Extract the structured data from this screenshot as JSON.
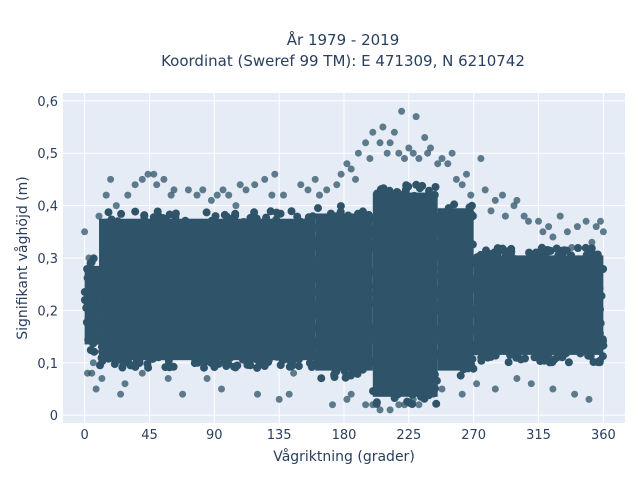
{
  "chart_data": {
    "type": "scatter",
    "title": "År 1979 - 2019",
    "subtitle": "Koordinat (Sweref 99 TM): E 471309, N 6210742",
    "xlabel": "Vågriktning (grader)",
    "ylabel": "Signifikant våghöjd (m)",
    "xlim": [
      -15,
      375
    ],
    "ylim": [
      -0.015,
      0.615
    ],
    "xticks": [
      0,
      45,
      90,
      135,
      180,
      225,
      270,
      315,
      360
    ],
    "xtick_labels": [
      "0",
      "45",
      "90",
      "135",
      "180",
      "225",
      "270",
      "315",
      "360"
    ],
    "yticks": [
      0,
      0.1,
      0.2,
      0.3,
      0.4,
      0.5,
      0.6
    ],
    "ytick_labels": [
      "0",
      "0,1",
      "0,2",
      "0,3",
      "0,4",
      "0,5",
      "0,6"
    ],
    "grid": true,
    "colors": {
      "marker": "#2f5469",
      "plot_bg": "#e5ecf6",
      "grid": "#ffffff",
      "text": "#2a3f5f"
    },
    "dense_band": [
      {
        "x": [
          0,
          10
        ],
        "y": [
          0.12,
          0.3
        ]
      },
      {
        "x": [
          10,
          160
        ],
        "y": [
          0.09,
          0.39
        ]
      },
      {
        "x": [
          160,
          200
        ],
        "y": [
          0.07,
          0.4
        ]
      },
      {
        "x": [
          200,
          245
        ],
        "y": [
          0.02,
          0.44
        ]
      },
      {
        "x": [
          245,
          270
        ],
        "y": [
          0.07,
          0.41
        ]
      },
      {
        "x": [
          270,
          360
        ],
        "y": [
          0.1,
          0.32
        ]
      }
    ],
    "x": [
      0,
      3,
      5,
      8,
      10,
      15,
      18,
      22,
      25,
      30,
      35,
      40,
      44,
      48,
      50,
      55,
      60,
      62,
      68,
      72,
      78,
      82,
      88,
      92,
      96,
      100,
      105,
      108,
      112,
      118,
      120,
      125,
      130,
      132,
      138,
      142,
      150,
      155,
      160,
      163,
      168,
      175,
      178,
      182,
      185,
      188,
      190,
      195,
      198,
      200,
      205,
      207,
      210,
      212,
      215,
      218,
      220,
      222,
      225,
      228,
      230,
      232,
      236,
      238,
      240,
      245,
      248,
      252,
      255,
      258,
      262,
      265,
      268,
      270,
      275,
      278,
      282,
      285,
      290,
      292,
      298,
      300,
      305,
      308,
      315,
      318,
      322,
      325,
      330,
      335,
      338,
      342,
      348,
      352,
      355,
      358,
      360,
      12,
      28,
      58,
      95,
      135,
      172,
      182,
      195,
      205,
      218,
      228,
      248,
      272,
      300,
      325,
      350,
      2,
      6,
      40,
      85,
      145,
      185,
      200,
      212,
      222,
      232,
      242,
      262,
      285,
      310,
      340
    ],
    "y": [
      0.35,
      0.3,
      0.08,
      0.05,
      0.38,
      0.42,
      0.45,
      0.4,
      0.04,
      0.42,
      0.44,
      0.45,
      0.46,
      0.46,
      0.44,
      0.45,
      0.42,
      0.43,
      0.04,
      0.43,
      0.42,
      0.43,
      0.41,
      0.42,
      0.43,
      0.42,
      0.4,
      0.44,
      0.43,
      0.44,
      0.04,
      0.45,
      0.42,
      0.46,
      0.42,
      0.04,
      0.44,
      0.43,
      0.45,
      0.42,
      0.43,
      0.44,
      0.46,
      0.48,
      0.47,
      0.45,
      0.5,
      0.52,
      0.49,
      0.54,
      0.52,
      0.55,
      0.5,
      0.52,
      0.54,
      0.5,
      0.58,
      0.49,
      0.51,
      0.5,
      0.57,
      0.49,
      0.53,
      0.5,
      0.51,
      0.48,
      0.49,
      0.48,
      0.5,
      0.45,
      0.44,
      0.46,
      0.42,
      0.38,
      0.49,
      0.43,
      0.39,
      0.41,
      0.42,
      0.38,
      0.4,
      0.41,
      0.38,
      0.37,
      0.37,
      0.35,
      0.36,
      0.34,
      0.38,
      0.35,
      0.32,
      0.36,
      0.37,
      0.33,
      0.36,
      0.37,
      0.35,
      0.07,
      0.06,
      0.07,
      0.05,
      0.03,
      0.02,
      0.03,
      0.02,
      0.01,
      0.02,
      0.03,
      0.05,
      0.06,
      0.07,
      0.05,
      0.03,
      0.08,
      0.1,
      0.08,
      0.07,
      0.08,
      0.04,
      0.02,
      0.01,
      0.02,
      0.02,
      0.04,
      0.04,
      0.05,
      0.06,
      0.04
    ]
  }
}
